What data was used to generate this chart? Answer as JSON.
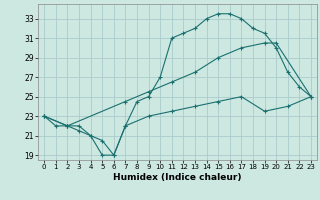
{
  "xlabel": "Humidex (Indice chaleur)",
  "bg_color": "#cce8e0",
  "grid_color": "#aacccc",
  "line_color": "#1a7070",
  "xlim": [
    -0.5,
    23.5
  ],
  "ylim": [
    18.5,
    34.5
  ],
  "yticks": [
    19,
    21,
    23,
    25,
    27,
    29,
    31,
    33
  ],
  "xticks": [
    0,
    1,
    2,
    3,
    4,
    5,
    6,
    7,
    8,
    9,
    10,
    11,
    12,
    13,
    14,
    15,
    16,
    17,
    18,
    19,
    20,
    21,
    22,
    23
  ],
  "line1_x": [
    0,
    1,
    2,
    3,
    4,
    5,
    6,
    7,
    8,
    9,
    10,
    11,
    12,
    13,
    14,
    15,
    16,
    17,
    18,
    19,
    20,
    21,
    22,
    23
  ],
  "line1_y": [
    23,
    22,
    22,
    22,
    21,
    19,
    19,
    22,
    24.5,
    25,
    27,
    31,
    31.5,
    32,
    33,
    33.5,
    33.5,
    33,
    32,
    31.5,
    30,
    27.5,
    26,
    25
  ],
  "line2_x": [
    0,
    2,
    7,
    9,
    11,
    13,
    15,
    17,
    19,
    20,
    23
  ],
  "line2_y": [
    23,
    22,
    24.5,
    25.5,
    26.5,
    27.5,
    29,
    30,
    30.5,
    30.5,
    25
  ],
  "line3_x": [
    0,
    2,
    3,
    4,
    5,
    6,
    7,
    9,
    11,
    13,
    15,
    17,
    19,
    21,
    23
  ],
  "line3_y": [
    23,
    22,
    21.5,
    21,
    20.5,
    19,
    22,
    23,
    23.5,
    24,
    24.5,
    25,
    23.5,
    24,
    25
  ]
}
